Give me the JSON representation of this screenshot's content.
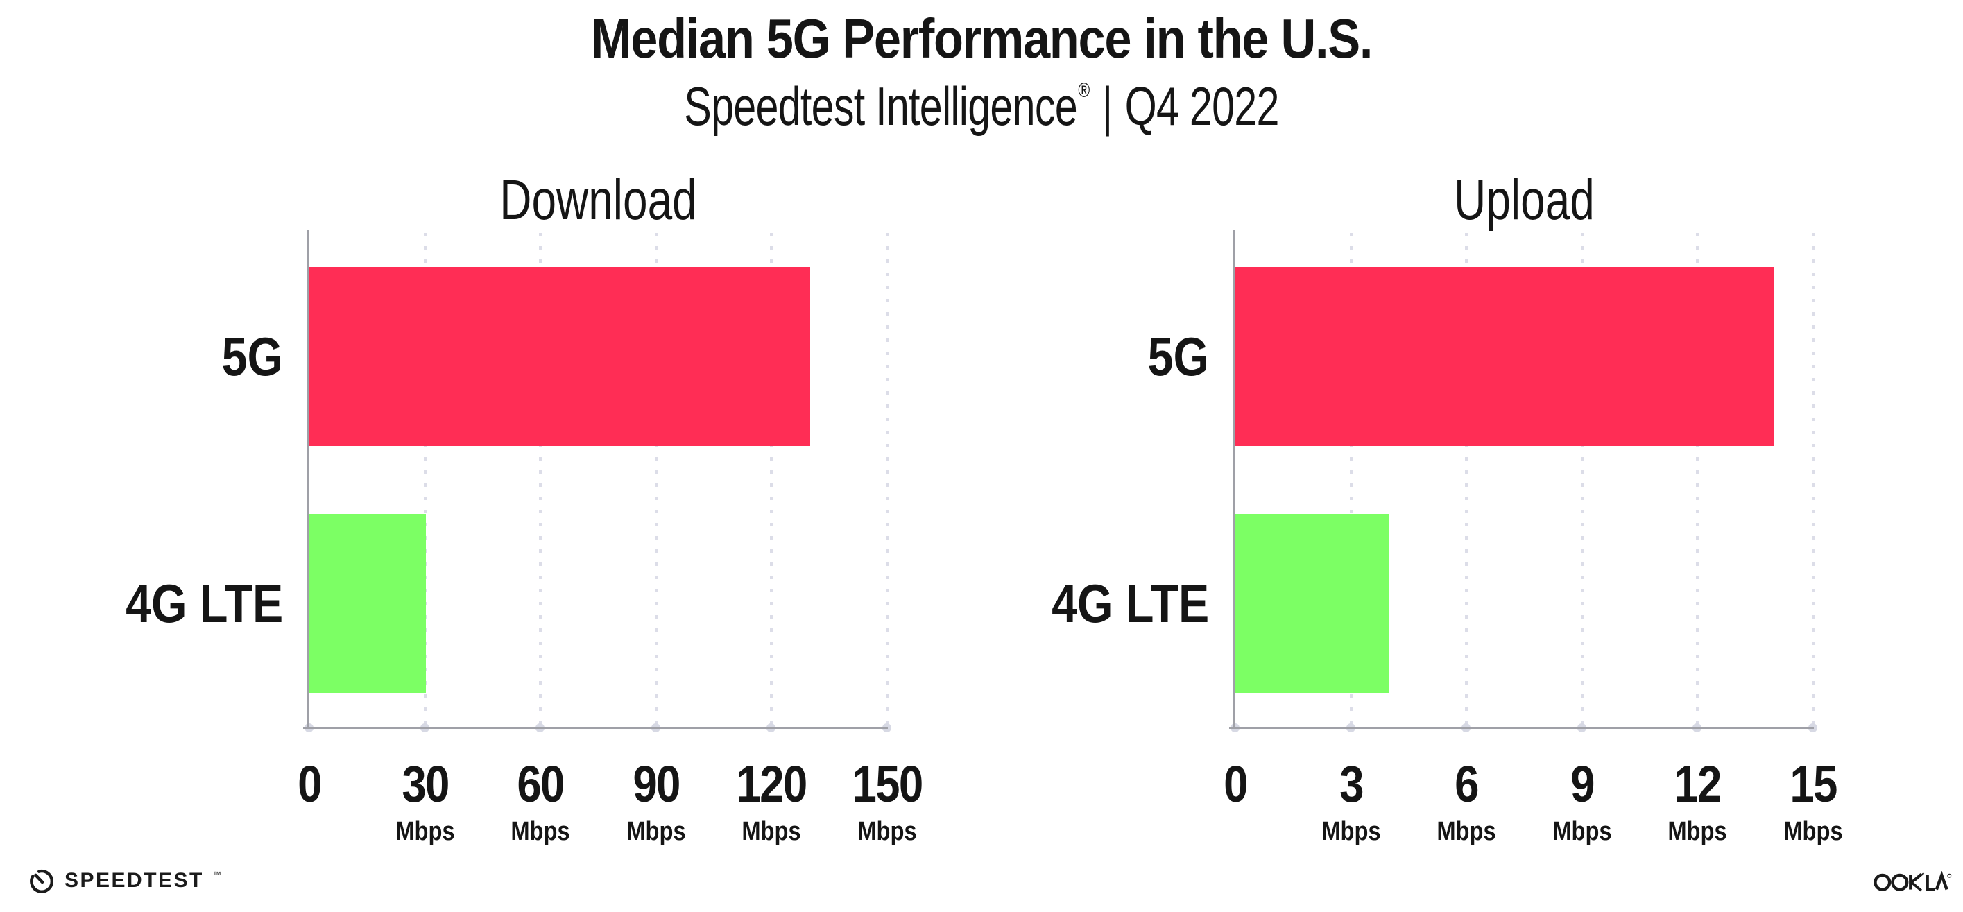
{
  "page": {
    "title": "Median 5G Performance in the U.S.",
    "subtitle": {
      "brand": "Speedtest Intelligence",
      "registered_mark": "®",
      "separator": "|",
      "period": "Q4 2022"
    }
  },
  "footer": {
    "speedtest_icon": "speedtest-gauge-icon",
    "speedtest_wordmark": "SPEEDTEST",
    "speedtest_trademark": "™",
    "ookla_wordmark": "OOKLA",
    "ookla_registered_mark": "®"
  },
  "colors": {
    "bar_5g": "#ff2d55",
    "bar_4g_lte": "#7cff64",
    "axis": "#9fa0a7",
    "gridline": "#dcdde8",
    "text": "#151515"
  },
  "chart_data": [
    {
      "type": "bar",
      "orientation": "horizontal",
      "title": "Download",
      "categories": [
        "5G",
        "4G LTE"
      ],
      "values": [
        130,
        30.3
      ],
      "unit": "Mbps",
      "xlim": [
        0,
        150
      ],
      "xticks": [
        0,
        30,
        60,
        90,
        120,
        150
      ],
      "tick_unit_label": "Mbps",
      "series_colors": [
        "#ff2d55",
        "#7cff64"
      ],
      "grid": "dotted-vertical",
      "legend": false
    },
    {
      "type": "bar",
      "orientation": "horizontal",
      "title": "Upload",
      "categories": [
        "5G",
        "4G LTE"
      ],
      "values": [
        14,
        4
      ],
      "unit": "Mbps",
      "xlim": [
        0,
        15
      ],
      "xticks": [
        0,
        3,
        6,
        9,
        12,
        15
      ],
      "tick_unit_label": "Mbps",
      "series_colors": [
        "#ff2d55",
        "#7cff64"
      ],
      "grid": "dotted-vertical",
      "legend": false
    }
  ]
}
